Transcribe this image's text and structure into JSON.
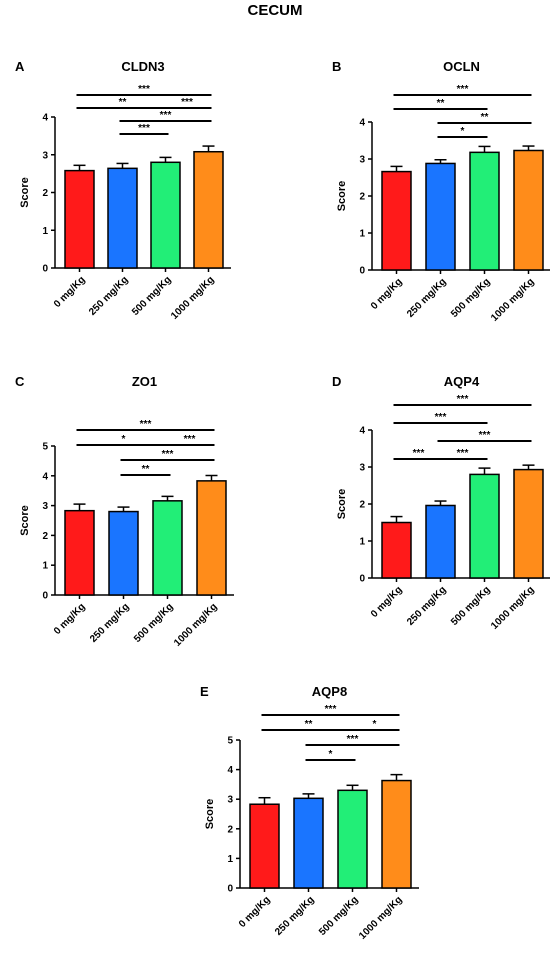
{
  "title": "CECUM",
  "chart_data": [
    {
      "type": "bar",
      "panel": "A",
      "title": "CLDN3",
      "ylabel": "Score",
      "categories": [
        "0 mg/Kg",
        "250 mg/Kg",
        "500 mg/Kg",
        "1000 mg/Kg"
      ],
      "values": [
        2.58,
        2.64,
        2.8,
        3.08
      ],
      "errors": [
        0.14,
        0.13,
        0.13,
        0.15
      ],
      "colors": [
        "#ff1a1a",
        "#1a75ff",
        "#22ee77",
        "#ff8c1a"
      ],
      "ylim": [
        0,
        4
      ],
      "yticks": [
        0,
        1,
        2,
        3,
        4
      ],
      "significance": [
        {
          "from": 0,
          "to": 3,
          "label": "***"
        },
        {
          "from": 0,
          "to": 2,
          "label": "**"
        },
        {
          "from": 2,
          "to": 3,
          "label": "***"
        },
        {
          "from": 1,
          "to": 3,
          "label": "***"
        },
        {
          "from": 1,
          "to": 2,
          "label": "***"
        }
      ]
    },
    {
      "type": "bar",
      "panel": "B",
      "title": "OCLN",
      "ylabel": "Score",
      "categories": [
        "0 mg/Kg",
        "250 mg/Kg",
        "500 mg/Kg",
        "1000 mg/Kg"
      ],
      "values": [
        2.66,
        2.88,
        3.18,
        3.23
      ],
      "errors": [
        0.14,
        0.1,
        0.16,
        0.12
      ],
      "colors": [
        "#ff1a1a",
        "#1a75ff",
        "#22ee77",
        "#ff8c1a"
      ],
      "ylim": [
        0,
        4
      ],
      "yticks": [
        0,
        1,
        2,
        3,
        4
      ],
      "significance": [
        {
          "from": 0,
          "to": 3,
          "label": "***"
        },
        {
          "from": 0,
          "to": 2,
          "label": "**"
        },
        {
          "from": 1,
          "to": 3,
          "label": "**"
        },
        {
          "from": 1,
          "to": 2,
          "label": "*"
        }
      ]
    },
    {
      "type": "bar",
      "panel": "C",
      "title": "ZO1",
      "ylabel": "Score",
      "categories": [
        "0 mg/Kg",
        "250 mg/Kg",
        "500 mg/Kg",
        "1000 mg/Kg"
      ],
      "values": [
        2.83,
        2.8,
        3.16,
        3.83
      ],
      "errors": [
        0.22,
        0.15,
        0.15,
        0.18
      ],
      "colors": [
        "#ff1a1a",
        "#1a75ff",
        "#22ee77",
        "#ff8c1a"
      ],
      "ylim": [
        0,
        5
      ],
      "yticks": [
        0,
        1,
        2,
        3,
        4,
        5
      ],
      "significance": [
        {
          "from": 0,
          "to": 3,
          "label": "***"
        },
        {
          "from": 0,
          "to": 2,
          "label": "*"
        },
        {
          "from": 2,
          "to": 3,
          "label": "***"
        },
        {
          "from": 1,
          "to": 3,
          "label": "***"
        },
        {
          "from": 1,
          "to": 2,
          "label": "**"
        }
      ]
    },
    {
      "type": "bar",
      "panel": "D",
      "title": "AQP4",
      "ylabel": "Score",
      "categories": [
        "0 mg/Kg",
        "250 mg/Kg",
        "500 mg/Kg",
        "1000 mg/Kg"
      ],
      "values": [
        1.5,
        1.96,
        2.8,
        2.93
      ],
      "errors": [
        0.16,
        0.12,
        0.17,
        0.12
      ],
      "colors": [
        "#ff1a1a",
        "#1a75ff",
        "#22ee77",
        "#ff8c1a"
      ],
      "ylim": [
        0,
        4
      ],
      "yticks": [
        0,
        1,
        2,
        3,
        4
      ],
      "significance": [
        {
          "from": 0,
          "to": 3,
          "label": "***"
        },
        {
          "from": 0,
          "to": 2,
          "label": "***"
        },
        {
          "from": 1,
          "to": 3,
          "label": "***"
        },
        {
          "from": 0,
          "to": 1,
          "label": "***"
        },
        {
          "from": 1,
          "to": 2,
          "label": "***"
        }
      ]
    },
    {
      "type": "bar",
      "panel": "E",
      "title": "AQP8",
      "ylabel": "Score",
      "categories": [
        "0 mg/Kg",
        "250 mg/Kg",
        "500 mg/Kg",
        "1000 mg/Kg"
      ],
      "values": [
        2.83,
        3.03,
        3.3,
        3.63
      ],
      "errors": [
        0.22,
        0.15,
        0.17,
        0.2
      ],
      "colors": [
        "#ff1a1a",
        "#1a75ff",
        "#22ee77",
        "#ff8c1a"
      ],
      "ylim": [
        0,
        5
      ],
      "yticks": [
        0,
        1,
        2,
        3,
        4,
        5
      ],
      "significance": [
        {
          "from": 0,
          "to": 3,
          "label": "***"
        },
        {
          "from": 0,
          "to": 2,
          "label": "**"
        },
        {
          "from": 2,
          "to": 3,
          "label": "*"
        },
        {
          "from": 1,
          "to": 3,
          "label": "***"
        },
        {
          "from": 1,
          "to": 2,
          "label": "*"
        }
      ]
    }
  ]
}
